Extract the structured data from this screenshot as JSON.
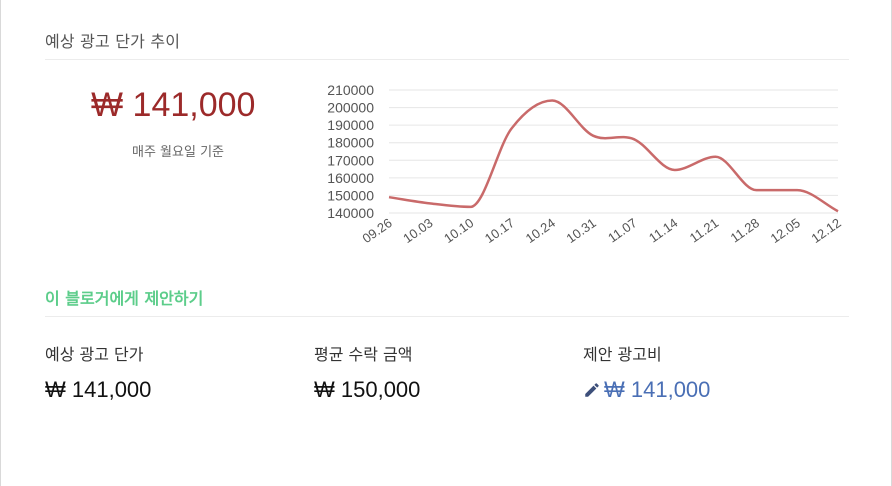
{
  "section_title": "예상 광고 단가 추이",
  "current_price": "₩ 141,000",
  "price_note": "매주 월요일 기준",
  "propose_title": "이 블로거에게 제안하기",
  "stats": [
    {
      "label": "예상 광고 단가",
      "value": "₩ 141,000"
    },
    {
      "label": "평균 수락 금액",
      "value": "₩ 150,000"
    },
    {
      "label": "제안 광고비",
      "value": "₩ 141,000",
      "icon": "pencil-icon"
    }
  ],
  "colors": {
    "accent_red": "#9c2a2a",
    "line": "#c96a6a",
    "green": "#5ccd8a",
    "blue": "#4a6fb5"
  },
  "chart_data": {
    "type": "line",
    "categories": [
      "09.26",
      "10.03",
      "10.10",
      "10.17",
      "10.24",
      "10.31",
      "11.07",
      "11.14",
      "11.21",
      "11.28",
      "12.05",
      "12.12"
    ],
    "series": [
      {
        "values": [
          149000,
          145500,
          143500,
          188000,
          204000,
          184000,
          182000,
          164500,
          172000,
          153000,
          153000,
          141000
        ]
      }
    ],
    "yticks": [
      "140000",
      "150000",
      "160000",
      "170000",
      "180000",
      "190000",
      "200000",
      "210000"
    ],
    "ylim": [
      140000,
      210000
    ],
    "grid": true,
    "smooth": true
  }
}
